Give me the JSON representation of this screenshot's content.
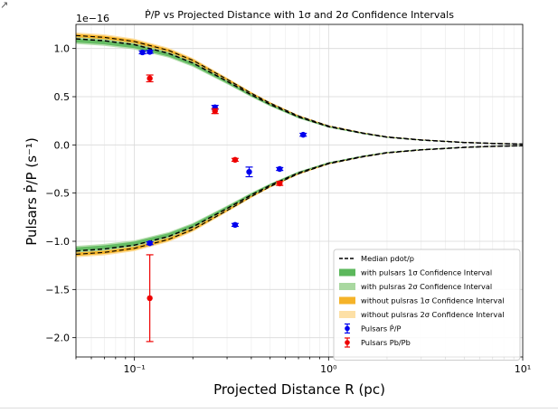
{
  "corner_mark": "↗",
  "chart_data": {
    "type": "line",
    "title": "Ṗ/P vs Projected Distance with 1σ and 2σ Confidence Intervals",
    "xlabel": "Projected Distance R (pc)",
    "ylabel": "Pulsars Ṗ/P (s⁻¹)",
    "offset_text": "1e−16",
    "xscale": "log",
    "xlim": [
      0.05,
      10
    ],
    "ylim": [
      -2.2,
      1.25
    ],
    "xticks": [
      {
        "value": 0.1,
        "label": "10⁻¹"
      },
      {
        "value": 1,
        "label": "10⁰"
      },
      {
        "value": 10,
        "label": "10¹"
      }
    ],
    "yticks": [
      {
        "value": 1.0,
        "label": "1.0"
      },
      {
        "value": 0.5,
        "label": "0.5"
      },
      {
        "value": 0.0,
        "label": "0.0"
      },
      {
        "value": -0.5,
        "label": "−0.5"
      },
      {
        "value": -1.0,
        "label": "−1.0"
      },
      {
        "value": -1.5,
        "label": "−1.5"
      },
      {
        "value": -2.0,
        "label": "−2.0"
      }
    ],
    "grid": true,
    "legend_position": "lower-right",
    "legend": [
      {
        "label": "Median pdot/p",
        "kind": "dashed-line",
        "color": "#000000"
      },
      {
        "label": "with pulsars 1σ Confidence Interval",
        "kind": "patch",
        "color": "#5cb85c"
      },
      {
        "label": "with pulsras 2σ Confidence Interval",
        "kind": "patch",
        "color": "#a9d8a0"
      },
      {
        "label": "without pulsras 1σ Confidence Interval",
        "kind": "patch",
        "color": "#f5b329"
      },
      {
        "label": "without pulsras 2σ Confidence Interval",
        "kind": "patch",
        "color": "#fde0a6"
      },
      {
        "label": "Pulsars Ṗ/P",
        "kind": "errorbar",
        "color": "#0000ee"
      },
      {
        "label": "Pulsars Pb/Pb",
        "kind": "errorbar",
        "color": "#ee0000"
      }
    ],
    "envelope_curve": {
      "x": [
        0.05,
        0.07,
        0.1,
        0.15,
        0.2,
        0.3,
        0.4,
        0.5,
        0.7,
        1.0,
        1.5,
        2,
        3,
        5,
        7,
        10
      ],
      "median_upper": [
        1.1,
        1.08,
        1.04,
        0.95,
        0.85,
        0.66,
        0.52,
        0.42,
        0.29,
        0.19,
        0.12,
        0.08,
        0.05,
        0.025,
        0.015,
        0.008
      ],
      "band_1sigma_halfwidth": [
        0.02,
        0.02,
        0.02,
        0.018,
        0.016,
        0.012,
        0.01,
        0.008,
        0.006,
        0.004,
        0.003,
        0.002,
        0.0015,
        0.001,
        0.001,
        0.001
      ],
      "band_2sigma_halfwidth": [
        0.035,
        0.035,
        0.033,
        0.03,
        0.027,
        0.02,
        0.016,
        0.013,
        0.01,
        0.007,
        0.005,
        0.004,
        0.003,
        0.002,
        0.0015,
        0.001
      ],
      "colors": {
        "without_2sigma": "#fde0a6",
        "without_1sigma": "#f5b329",
        "with_2sigma": "#a9d8a0",
        "with_1sigma": "#5cb85c",
        "median": "#000000"
      }
    },
    "series": [
      {
        "name": "Pulsars Ṗ/P",
        "color": "#0000ee",
        "points": [
          {
            "x": 0.11,
            "y": 0.96,
            "err": 0.015
          },
          {
            "x": 0.12,
            "y": 0.965,
            "err": 0.015
          },
          {
            "x": 0.26,
            "y": 0.39,
            "err": 0.02
          },
          {
            "x": 0.12,
            "y": -1.02,
            "err": 0.015
          },
          {
            "x": 0.33,
            "y": -0.83,
            "err": 0.015
          },
          {
            "x": 0.39,
            "y": -0.28,
            "err": 0.05
          },
          {
            "x": 0.56,
            "y": -0.25,
            "err": 0.015
          },
          {
            "x": 0.74,
            "y": 0.105,
            "err": 0.015
          }
        ]
      },
      {
        "name": "Pulsars Pb/Pb",
        "color": "#ee0000",
        "points": [
          {
            "x": 0.12,
            "y": 0.69,
            "err": 0.035
          },
          {
            "x": 0.26,
            "y": 0.35,
            "err": 0.025
          },
          {
            "x": 0.33,
            "y": -0.155,
            "err": 0.015
          },
          {
            "x": 0.56,
            "y": -0.4,
            "err": 0.02
          },
          {
            "x": 0.12,
            "y": -1.59,
            "err": 0.45
          }
        ]
      }
    ]
  }
}
